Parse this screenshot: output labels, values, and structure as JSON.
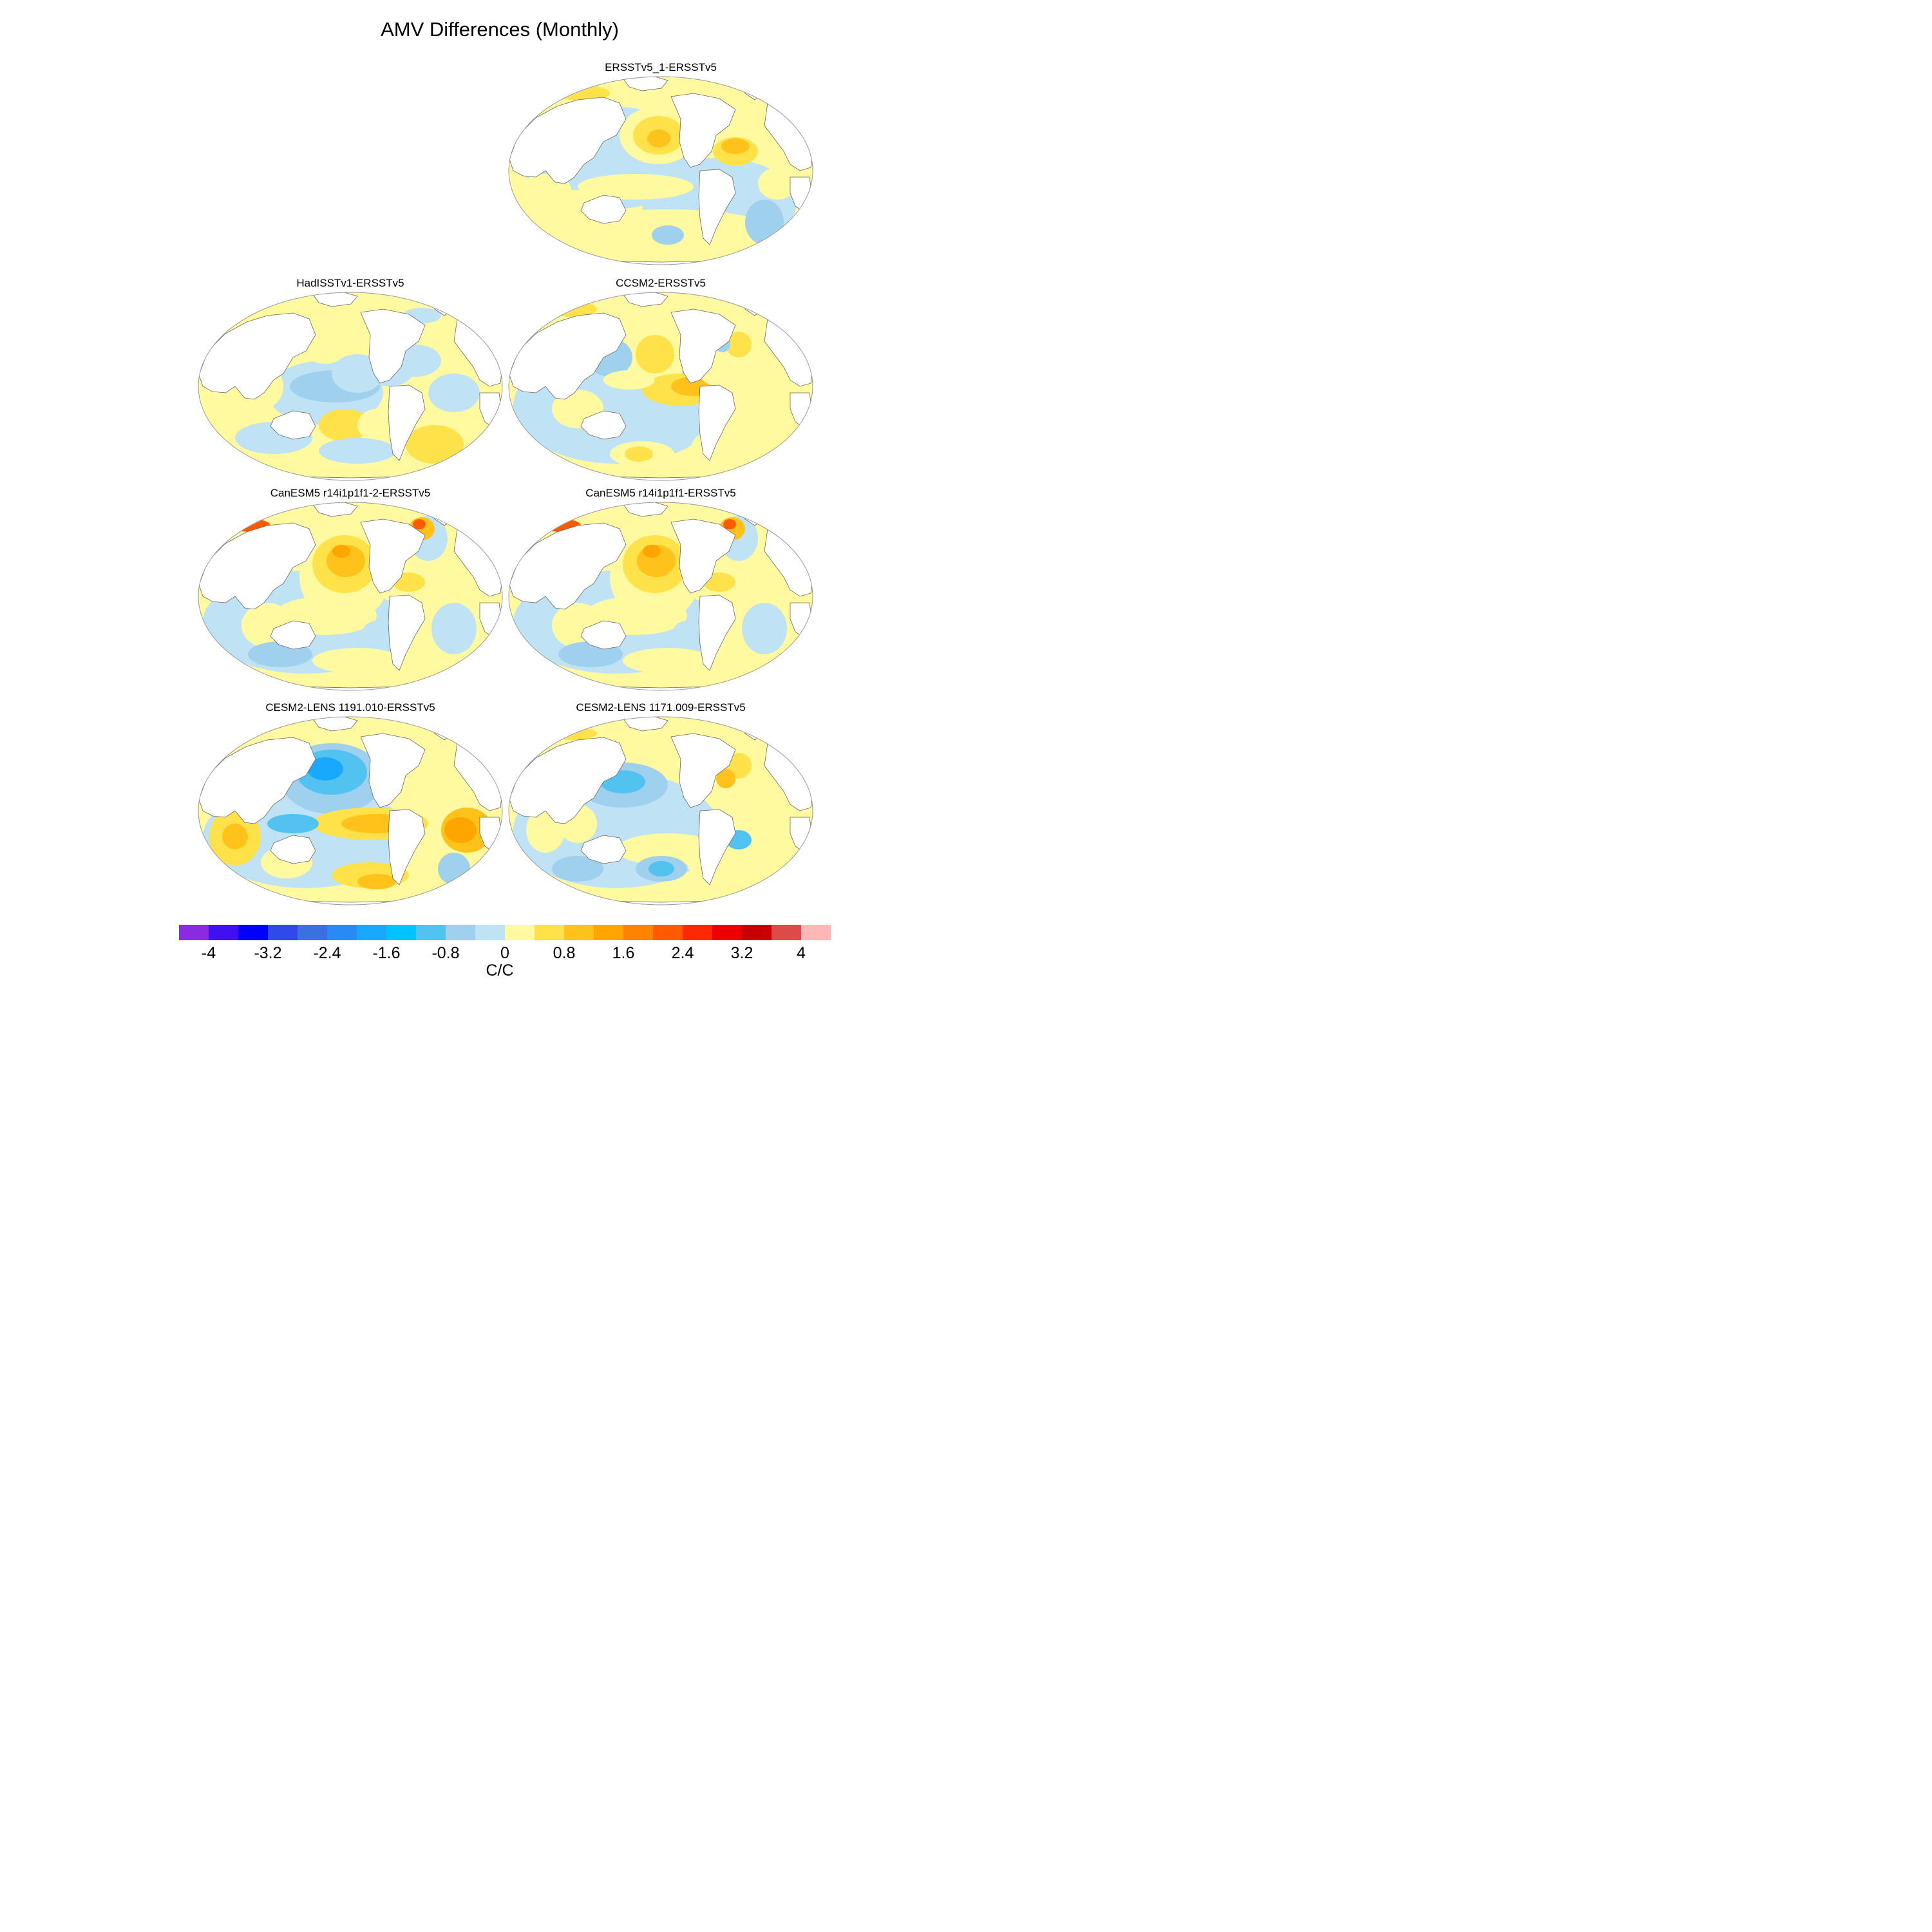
{
  "figure": {
    "title": "AMV Differences (Monthly)"
  },
  "panels": [
    {
      "title": "ERSSTv5_1-ERSSTv5",
      "pattern": "mild"
    },
    {
      "title": "HadISSTv1-ERSSTv5",
      "pattern": "had"
    },
    {
      "title": "CCSM2-ERSSTv5",
      "pattern": "ccsm"
    },
    {
      "title": "CanESM5 r14i1p1f1-2-ERSSTv5",
      "pattern": "can"
    },
    {
      "title": "CanESM5 r14i1p1f1-ERSSTv5",
      "pattern": "can"
    },
    {
      "title": "CESM2-LENS 1191.010-ERSSTv5",
      "pattern": "cesmA"
    },
    {
      "title": "CESM2-LENS 1171.009-ERSSTv5",
      "pattern": "cesmB"
    }
  ],
  "colorbar": {
    "units": "C/C",
    "tick_labels": [
      "-4",
      "-3.2",
      "-2.4",
      "-1.6",
      "-0.8",
      "0",
      "0.8",
      "1.6",
      "2.4",
      "3.2",
      "4"
    ],
    "colors": [
      "#8a2be2",
      "#4010f0",
      "#0000ff",
      "#3049e8",
      "#3a70e0",
      "#2a8af5",
      "#18a8ff",
      "#00c4ff",
      "#52c2f0",
      "#9fd0ee",
      "#bfe2f5",
      "#fff9a0",
      "#ffe24a",
      "#ffc21a",
      "#ffa500",
      "#ff8200",
      "#ff5a00",
      "#ff2800",
      "#ef0000",
      "#c80000",
      "#dd4a4a",
      "#ffb6b6"
    ]
  }
}
